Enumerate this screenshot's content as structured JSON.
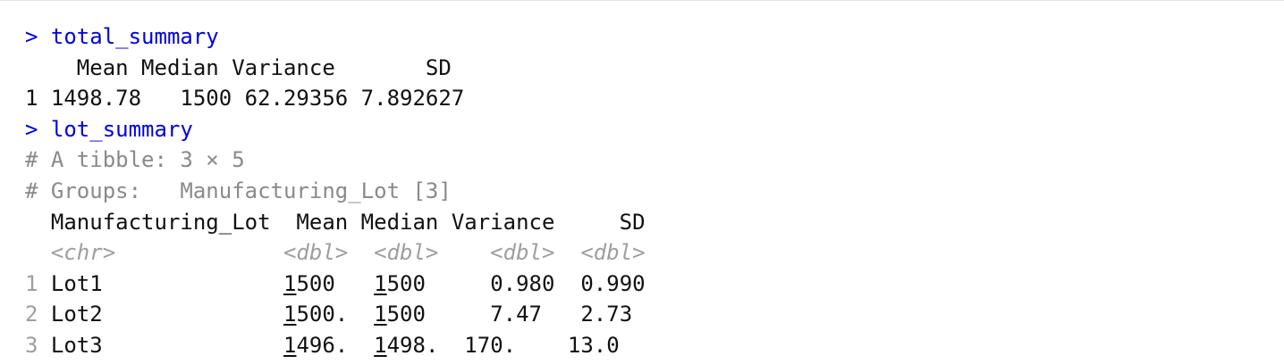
{
  "console": {
    "lines": [
      {
        "kind": "input",
        "prompt": ">",
        "text": "total_summary"
      },
      {
        "kind": "output",
        "text": "    Mean Median Variance       SD"
      },
      {
        "kind": "output",
        "text": "1 1498.78   1500 62.29356 7.892627"
      },
      {
        "kind": "input",
        "prompt": ">",
        "text": "lot_summary"
      },
      {
        "kind": "meta",
        "text": "# A tibble: 3 × 5"
      },
      {
        "kind": "meta",
        "text": "# Groups:   Manufacturing_Lot [3]"
      },
      {
        "kind": "header",
        "text": "  Manufacturing_Lot  Mean Median Variance     SD"
      },
      {
        "kind": "types",
        "text": "  <chr>             <dbl>  <dbl>    <dbl>  <dbl>"
      },
      {
        "kind": "row",
        "row_number": "1",
        "cells": [
          {
            "text": " Lot1              "
          },
          {
            "text": "1",
            "underline": true
          },
          {
            "text": "500   "
          },
          {
            "text": "1",
            "underline": true
          },
          {
            "text": "500     0.980  0.990"
          }
        ]
      },
      {
        "kind": "row",
        "row_number": "2",
        "cells": [
          {
            "text": " Lot2              "
          },
          {
            "text": "1",
            "underline": true
          },
          {
            "text": "500.  "
          },
          {
            "text": "1",
            "underline": true
          },
          {
            "text": "500     7.47   2.73"
          }
        ]
      },
      {
        "kind": "row",
        "row_number": "3",
        "cells": [
          {
            "text": " Lot3              "
          },
          {
            "text": "1",
            "underline": true
          },
          {
            "text": "496.  "
          },
          {
            "text": "1",
            "underline": true
          },
          {
            "text": "498.  170.    13.0"
          }
        ]
      }
    ]
  },
  "colors": {
    "prompt_blue": "#0000e0",
    "output_text": "#111111",
    "comment_gray": "#8a8a8a",
    "type_gray": "#9e9e9e"
  }
}
